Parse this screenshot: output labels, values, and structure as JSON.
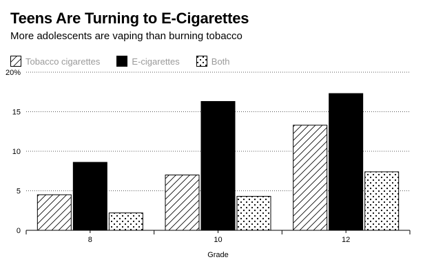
{
  "chart_data": {
    "type": "bar",
    "title": "Teens Are Turning to E-Cigarettes",
    "subtitle": "More adolescents are vaping than burning tobacco",
    "xlabel": "Grade",
    "ylabel": "",
    "categories": [
      "8",
      "10",
      "12"
    ],
    "series": [
      {
        "name": "Tobacco cigarettes",
        "values": [
          4.5,
          7.0,
          13.3
        ],
        "pattern": "hatch"
      },
      {
        "name": "E-cigarettes",
        "values": [
          8.6,
          16.3,
          17.3
        ],
        "pattern": "solid"
      },
      {
        "name": "Both",
        "values": [
          2.2,
          4.3,
          7.4
        ],
        "pattern": "dots"
      }
    ],
    "ylim": [
      0,
      20
    ],
    "yticks": [
      0,
      5,
      10,
      15,
      20
    ],
    "ytick_labels": [
      "0",
      "5",
      "10",
      "15",
      "20%"
    ],
    "grid": true,
    "legend_position": "top-left",
    "colors": {
      "bar_fill": "#ffffff",
      "solid_fill": "#000000",
      "stroke": "#000000",
      "grid": "#555555",
      "legend_text": "#9a9a9a"
    }
  }
}
